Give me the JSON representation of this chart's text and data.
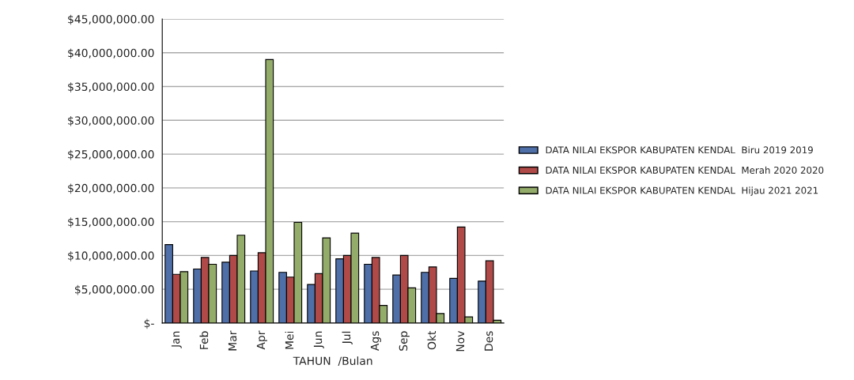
{
  "chart_data": {
    "type": "bar",
    "xlabel": "TAHUN  /Bulan",
    "categories": [
      "Jan",
      "Feb",
      "Mar",
      "Apr",
      "Mei",
      "Jun",
      "Jul",
      "Ags",
      "Sep",
      "Okt",
      "Nov",
      "Des"
    ],
    "series": [
      {
        "name": "DATA NILAI EKSPOR KABUPATEN KENDAL  Biru 2019 2019",
        "color": "#4f6fa8",
        "values": [
          11600000,
          8000000,
          9000000,
          7700000,
          7500000,
          5700000,
          9500000,
          8700000,
          7100000,
          7500000,
          6600000,
          6200000
        ]
      },
      {
        "name": "DATA NILAI EKSPOR KABUPATEN KENDAL  Merah 2020 2020",
        "color": "#b04a48",
        "values": [
          7200000,
          9700000,
          10000000,
          10400000,
          6800000,
          7300000,
          10000000,
          9700000,
          10000000,
          8300000,
          14200000,
          9200000
        ]
      },
      {
        "name": "DATA NILAI EKSPOR KABUPATEN KENDAL  Hijau 2021 2021",
        "color": "#94ac6a",
        "values": [
          7600000,
          8700000,
          13000000,
          39000000,
          14900000,
          12600000,
          13300000,
          2600000,
          5200000,
          1400000,
          900000,
          400000
        ]
      }
    ],
    "ylim": [
      0,
      45000000
    ],
    "yticks": [
      {
        "value": 0,
        "label": "$-"
      },
      {
        "value": 5000000,
        "label": "$5,000,000.00"
      },
      {
        "value": 10000000,
        "label": "$10,000,000.00"
      },
      {
        "value": 15000000,
        "label": "$15,000,000.00"
      },
      {
        "value": 20000000,
        "label": "$20,000,000.00"
      },
      {
        "value": 25000000,
        "label": "$25,000,000.00"
      },
      {
        "value": 30000000,
        "label": "$30,000,000.00"
      },
      {
        "value": 35000000,
        "label": "$35,000,000.00"
      },
      {
        "value": 40000000,
        "label": "$40,000,000.00"
      },
      {
        "value": 45000000,
        "label": "$45,000,000.00"
      }
    ],
    "grid": "y",
    "legend": "right"
  }
}
